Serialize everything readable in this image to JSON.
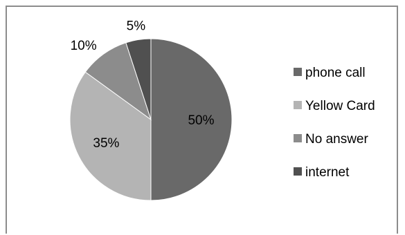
{
  "chart_data": {
    "type": "pie",
    "categories": [
      "phone call",
      "Yellow Card",
      "No answer",
      "internet"
    ],
    "values": [
      50,
      35,
      10,
      5
    ],
    "labels": [
      "50%",
      "35%",
      "10%",
      "5%"
    ],
    "colors": [
      "#696969",
      "#b4b4b4",
      "#8c8c8c",
      "#505050"
    ],
    "legend_position": "right",
    "start_angle": "12 o'clock",
    "direction": "clockwise"
  }
}
